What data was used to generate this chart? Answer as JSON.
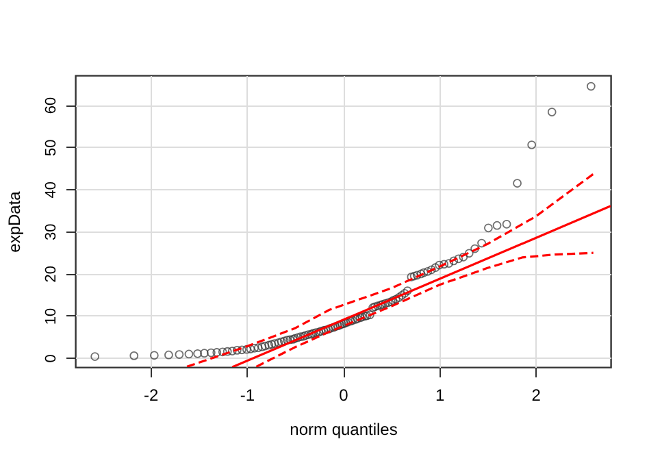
{
  "chart_data": {
    "type": "scatter",
    "xlabel": "norm quantiles",
    "ylabel": "expData",
    "xlim": [
      -2.78,
      2.78
    ],
    "ylim": [
      -2.2,
      67
    ],
    "xticks": [
      -2,
      -1,
      0,
      1,
      2
    ],
    "yticks": [
      0,
      10,
      20,
      30,
      40,
      50,
      60
    ],
    "grid": true,
    "series": [
      {
        "type": "scatter",
        "marker": "circle",
        "color": "#333333",
        "x": [
          -2.576,
          -2.17,
          -1.96,
          -1.81,
          -1.7,
          -1.6,
          -1.51,
          -1.44,
          -1.37,
          -1.31,
          -1.25,
          -1.2,
          -1.15,
          -1.1,
          -1.05,
          -1.0,
          -0.96,
          -0.92,
          -0.88,
          -0.84,
          -0.81,
          -0.77,
          -0.74,
          -0.71,
          -0.67,
          -0.64,
          -0.61,
          -0.58,
          -0.55,
          -0.52,
          -0.5,
          -0.47,
          -0.44,
          -0.41,
          -0.39,
          -0.36,
          -0.33,
          -0.31,
          -0.28,
          -0.25,
          -0.23,
          -0.2,
          -0.18,
          -0.15,
          -0.13,
          -0.1,
          -0.08,
          -0.05,
          -0.03,
          -0.01,
          0.01,
          0.03,
          0.05,
          0.08,
          0.1,
          0.13,
          0.15,
          0.18,
          0.2,
          0.23,
          0.25,
          0.28,
          0.31,
          0.33,
          0.36,
          0.39,
          0.41,
          0.44,
          0.47,
          0.5,
          0.52,
          0.55,
          0.58,
          0.61,
          0.64,
          0.67,
          0.71,
          0.74,
          0.77,
          0.81,
          0.84,
          0.88,
          0.92,
          0.96,
          1.0,
          1.05,
          1.1,
          1.15,
          1.2,
          1.25,
          1.31,
          1.37,
          1.44,
          1.51,
          1.6,
          1.7,
          1.81,
          1.96,
          2.17,
          2.576
        ],
        "values": [
          0.3,
          0.5,
          0.6,
          0.7,
          0.8,
          0.9,
          1.0,
          1.1,
          1.2,
          1.3,
          1.4,
          1.5,
          1.6,
          1.8,
          1.9,
          2.0,
          2.1,
          2.3,
          2.4,
          2.6,
          2.8,
          3.0,
          3.2,
          3.4,
          3.6,
          3.8,
          4.0,
          4.2,
          4.3,
          4.4,
          4.6,
          4.8,
          5.0,
          5.1,
          5.3,
          5.5,
          5.6,
          5.8,
          6.0,
          6.1,
          6.3,
          6.5,
          6.6,
          6.8,
          7.0,
          7.2,
          7.4,
          7.6,
          7.8,
          8.0,
          8.1,
          8.3,
          8.5,
          8.7,
          8.9,
          9.1,
          9.3,
          9.5,
          9.7,
          9.9,
          10.0,
          10.2,
          11.9,
          12.1,
          12.3,
          12.5,
          12.7,
          12.9,
          13.1,
          13.3,
          13.6,
          13.9,
          14.3,
          14.8,
          15.3,
          15.9,
          19.2,
          19.4,
          19.6,
          19.9,
          20.2,
          20.5,
          20.9,
          21.4,
          22.0,
          22.2,
          22.4,
          23.0,
          23.5,
          23.9,
          24.8,
          25.9,
          27.2,
          30.8,
          31.4,
          31.7,
          41.4,
          50.5,
          58.3,
          64.4
        ]
      },
      {
        "type": "line",
        "color": "#ff0000",
        "line_style": "solid",
        "marker": "none",
        "x": [
          -1.15,
          2.78
        ],
        "values": [
          -2.2,
          36.0
        ]
      },
      {
        "type": "line",
        "color": "#ff0000",
        "line_style": "dashed",
        "marker": "none",
        "x": [
          -1.62,
          -1.0,
          -0.5,
          -0.14,
          0.5,
          1.0,
          1.5,
          2.0,
          2.6
        ],
        "values": [
          -2.1,
          2.7,
          7.0,
          11.4,
          16.5,
          21.6,
          27.0,
          33.5,
          43.6
        ]
      },
      {
        "type": "line",
        "color": "#ff0000",
        "line_style": "dashed",
        "marker": "none",
        "x": [
          -0.9,
          -0.5,
          -0.14,
          0.5,
          1.0,
          1.5,
          1.86,
          2.2,
          2.6
        ],
        "values": [
          -2.1,
          2.5,
          6.2,
          12.2,
          17.3,
          21.3,
          23.8,
          24.5,
          24.9
        ]
      }
    ]
  }
}
